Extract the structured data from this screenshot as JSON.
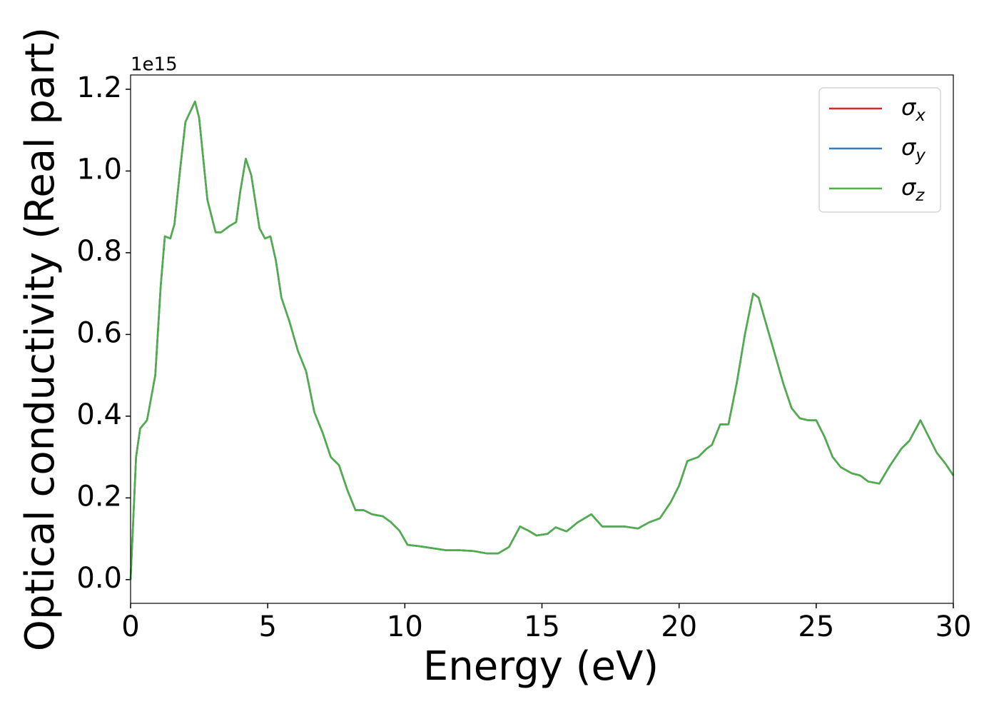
{
  "chart_data": {
    "type": "line",
    "xlabel": "Energy (eV)",
    "ylabel": "Optical conductivity (Real part)",
    "y_offset_label": "1e15",
    "xlim": [
      0,
      30
    ],
    "xticks": [
      0,
      5,
      10,
      15,
      20,
      25,
      30
    ],
    "ylim": [
      -0.058,
      1.235
    ],
    "yticks": [
      {
        "value": 0,
        "label": "0.0"
      },
      {
        "value": 0.2,
        "label": "0.2"
      },
      {
        "value": 0.4,
        "label": "0.4"
      },
      {
        "value": 0.6,
        "label": "0.6"
      },
      {
        "value": 0.8,
        "label": "0.8"
      },
      {
        "value": 1.0,
        "label": "1.0"
      },
      {
        "value": 1.2,
        "label": "1.2"
      }
    ],
    "grid": false,
    "legend": "upper right",
    "x": [
      0,
      0.1,
      0.2,
      0.35,
      0.6,
      0.9,
      1.1,
      1.25,
      1.45,
      1.6,
      1.8,
      2.0,
      2.35,
      2.5,
      2.8,
      3.1,
      3.3,
      3.6,
      3.85,
      4.0,
      4.2,
      4.4,
      4.7,
      4.9,
      5.1,
      5.3,
      5.5,
      5.8,
      6.1,
      6.4,
      6.7,
      7.0,
      7.3,
      7.6,
      7.9,
      8.2,
      8.5,
      8.8,
      9.2,
      9.5,
      9.8,
      10.1,
      10.5,
      11,
      11.5,
      12,
      12.5,
      13,
      13.4,
      13.8,
      14.2,
      14.5,
      14.8,
      15.2,
      15.5,
      15.9,
      16.3,
      16.8,
      17.2,
      17.6,
      18.0,
      18.5,
      18.9,
      19.3,
      19.7,
      20.0,
      20.3,
      20.7,
      21.0,
      21.2,
      21.5,
      21.8,
      22.1,
      22.4,
      22.7,
      22.9,
      23.2,
      23.5,
      23.8,
      24.1,
      24.4,
      24.7,
      25.0,
      25.3,
      25.6,
      25.9,
      26.3,
      26.6,
      26.9,
      27.3,
      27.7,
      28.1,
      28.4,
      28.8,
      29.1,
      29.4,
      29.7,
      30
    ],
    "series": [
      {
        "name": "σ_x",
        "color": "#d62728",
        "values": [
          0,
          0.15,
          0.3,
          0.37,
          0.39,
          0.5,
          0.72,
          0.84,
          0.835,
          0.87,
          1.0,
          1.12,
          1.17,
          1.13,
          0.93,
          0.85,
          0.85,
          0.865,
          0.875,
          0.95,
          1.03,
          0.99,
          0.86,
          0.835,
          0.84,
          0.78,
          0.69,
          0.63,
          0.56,
          0.51,
          0.41,
          0.36,
          0.3,
          0.28,
          0.22,
          0.17,
          0.17,
          0.16,
          0.155,
          0.14,
          0.12,
          0.085,
          0.082,
          0.077,
          0.072,
          0.072,
          0.07,
          0.064,
          0.064,
          0.08,
          0.13,
          0.12,
          0.108,
          0.112,
          0.128,
          0.118,
          0.14,
          0.16,
          0.13,
          0.13,
          0.13,
          0.125,
          0.14,
          0.15,
          0.19,
          0.23,
          0.29,
          0.3,
          0.32,
          0.33,
          0.38,
          0.38,
          0.48,
          0.6,
          0.7,
          0.69,
          0.62,
          0.55,
          0.48,
          0.42,
          0.395,
          0.39,
          0.39,
          0.35,
          0.3,
          0.275,
          0.26,
          0.255,
          0.24,
          0.235,
          0.28,
          0.32,
          0.34,
          0.39,
          0.35,
          0.31,
          0.285,
          0.255
        ]
      },
      {
        "name": "σ_y",
        "color": "#3a7bbf",
        "values": [
          0,
          0.15,
          0.3,
          0.37,
          0.39,
          0.5,
          0.72,
          0.84,
          0.835,
          0.87,
          1.0,
          1.12,
          1.17,
          1.13,
          0.93,
          0.85,
          0.85,
          0.865,
          0.875,
          0.95,
          1.03,
          0.99,
          0.86,
          0.835,
          0.84,
          0.78,
          0.69,
          0.63,
          0.56,
          0.51,
          0.41,
          0.36,
          0.3,
          0.28,
          0.22,
          0.17,
          0.17,
          0.16,
          0.155,
          0.14,
          0.12,
          0.085,
          0.082,
          0.077,
          0.072,
          0.072,
          0.07,
          0.064,
          0.064,
          0.08,
          0.13,
          0.12,
          0.108,
          0.112,
          0.128,
          0.118,
          0.14,
          0.16,
          0.13,
          0.13,
          0.13,
          0.125,
          0.14,
          0.15,
          0.19,
          0.23,
          0.29,
          0.3,
          0.32,
          0.33,
          0.38,
          0.38,
          0.48,
          0.6,
          0.7,
          0.69,
          0.62,
          0.55,
          0.48,
          0.42,
          0.395,
          0.39,
          0.39,
          0.35,
          0.3,
          0.275,
          0.26,
          0.255,
          0.24,
          0.235,
          0.28,
          0.32,
          0.34,
          0.39,
          0.35,
          0.31,
          0.285,
          0.255
        ]
      },
      {
        "name": "σ_z",
        "color": "#4daf4a",
        "values": [
          0,
          0.15,
          0.3,
          0.37,
          0.39,
          0.5,
          0.72,
          0.84,
          0.835,
          0.87,
          1.0,
          1.12,
          1.17,
          1.13,
          0.93,
          0.85,
          0.85,
          0.865,
          0.875,
          0.95,
          1.03,
          0.99,
          0.86,
          0.835,
          0.84,
          0.78,
          0.69,
          0.63,
          0.56,
          0.51,
          0.41,
          0.36,
          0.3,
          0.28,
          0.22,
          0.17,
          0.17,
          0.16,
          0.155,
          0.14,
          0.12,
          0.085,
          0.082,
          0.077,
          0.072,
          0.072,
          0.07,
          0.064,
          0.064,
          0.08,
          0.13,
          0.12,
          0.108,
          0.112,
          0.128,
          0.118,
          0.14,
          0.16,
          0.13,
          0.13,
          0.13,
          0.125,
          0.14,
          0.15,
          0.19,
          0.23,
          0.29,
          0.3,
          0.32,
          0.33,
          0.38,
          0.38,
          0.48,
          0.6,
          0.7,
          0.69,
          0.62,
          0.55,
          0.48,
          0.42,
          0.395,
          0.39,
          0.39,
          0.35,
          0.3,
          0.275,
          0.26,
          0.255,
          0.24,
          0.235,
          0.28,
          0.32,
          0.34,
          0.39,
          0.35,
          0.31,
          0.285,
          0.255
        ]
      }
    ]
  }
}
